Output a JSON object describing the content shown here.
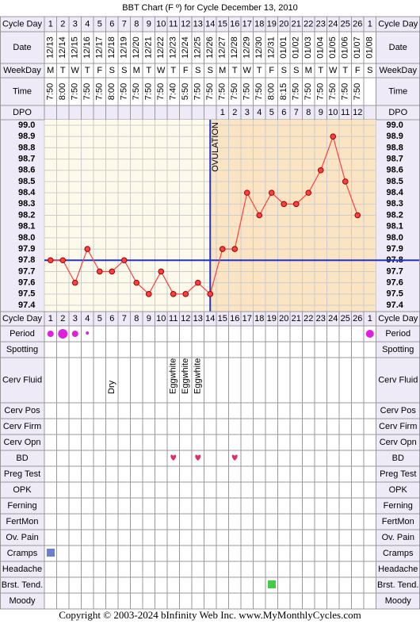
{
  "chart_data": {
    "type": "line",
    "title": "BBT Chart (F º) for Cycle December 13, 2010",
    "categories": [
      1,
      2,
      3,
      4,
      5,
      6,
      7,
      8,
      9,
      10,
      11,
      12,
      13,
      14,
      15,
      16,
      17,
      18,
      19,
      20,
      21,
      22,
      23,
      24,
      25,
      26,
      1
    ],
    "dates": [
      "12/13",
      "12/14",
      "12/15",
      "12/16",
      "12/17",
      "12/18",
      "12/19",
      "12/20",
      "12/21",
      "12/22",
      "12/23",
      "12/24",
      "12/25",
      "12/26",
      "12/27",
      "12/28",
      "12/29",
      "12/30",
      "12/31",
      "01/01",
      "01/02",
      "01/03",
      "01/04",
      "01/05",
      "01/06",
      "01/07",
      "01/08"
    ],
    "weekdays": [
      "M",
      "T",
      "W",
      "T",
      "F",
      "S",
      "S",
      "M",
      "T",
      "W",
      "T",
      "F",
      "S",
      "S",
      "M",
      "T",
      "W",
      "T",
      "F",
      "S",
      "S",
      "M",
      "T",
      "W",
      "T",
      "F",
      "S"
    ],
    "times": [
      "7:50",
      "8:00",
      "7:50",
      "7:50",
      "7:50",
      "8:00",
      "7:50",
      "7:50",
      "7:50",
      "7:50",
      "7:40",
      "5:50",
      "7:50",
      "7:50",
      "7:50",
      "7:50",
      "7:50",
      "7:50",
      "8:00",
      "8:15",
      "7:50",
      "7:50",
      "7:50",
      "7:50",
      "7:50",
      "7:50",
      null
    ],
    "dpo": [
      null,
      null,
      null,
      null,
      null,
      null,
      null,
      null,
      null,
      null,
      null,
      null,
      null,
      null,
      1,
      2,
      3,
      4,
      5,
      6,
      7,
      8,
      9,
      10,
      11,
      12,
      null
    ],
    "values": [
      97.8,
      97.8,
      97.6,
      97.9,
      97.7,
      97.7,
      97.8,
      97.6,
      97.5,
      97.7,
      97.5,
      97.5,
      97.6,
      97.5,
      97.9,
      97.9,
      98.4,
      98.2,
      98.4,
      98.3,
      98.3,
      98.4,
      98.6,
      98.9,
      98.5,
      98.2,
      null
    ],
    "color": "#ff4040",
    "coverline": 97.8,
    "ovulation_cycle_day": 14,
    "ovulation_label": "OVULATION",
    "ylim": [
      97.4,
      99.0
    ],
    "yticks": [
      {
        "value": 99.0,
        "label": "99.0"
      },
      98.9,
      98.8,
      98.7,
      98.6,
      98.5,
      98.4,
      98.3,
      98.2,
      98.1,
      {
        "value": 98.0,
        "label": "98.0"
      },
      97.9,
      97.8,
      97.7,
      97.6,
      97.5,
      97.4
    ],
    "grid": true,
    "cerv_fluid": [
      null,
      null,
      null,
      null,
      null,
      "Dry",
      null,
      null,
      null,
      null,
      "Eggwhite",
      "Eggwhite",
      "Eggwhite",
      null,
      null,
      null,
      null,
      null,
      null,
      null,
      null,
      null,
      null,
      null,
      null,
      null,
      null
    ],
    "labels": {
      "cycle_day": "Cycle Day",
      "date": "Date",
      "weekday": "WeekDay",
      "time": "Time",
      "dpo": "DPO",
      "period": "Period",
      "spotting": "Spotting",
      "cerv_fluid": "Cerv Fluid",
      "cerv_pos": "Cerv Pos",
      "cerv_firm": "Cerv Firm",
      "cerv_opn": "Cerv Opn",
      "bd": "BD",
      "preg_test": "Preg Test",
      "opk": "OPK",
      "ferning": "Ferning",
      "fertmon": "FertMon",
      "ov_pain": "Ov. Pain",
      "cramps": "Cramps",
      "headache": "Headache",
      "brst_tend": "Brst. Tend.",
      "moody": "Moody"
    },
    "copyright": "Copyright © 2003-2024 bInfinity Web Inc.    www.MyMonthlyCycles.com"
  }
}
